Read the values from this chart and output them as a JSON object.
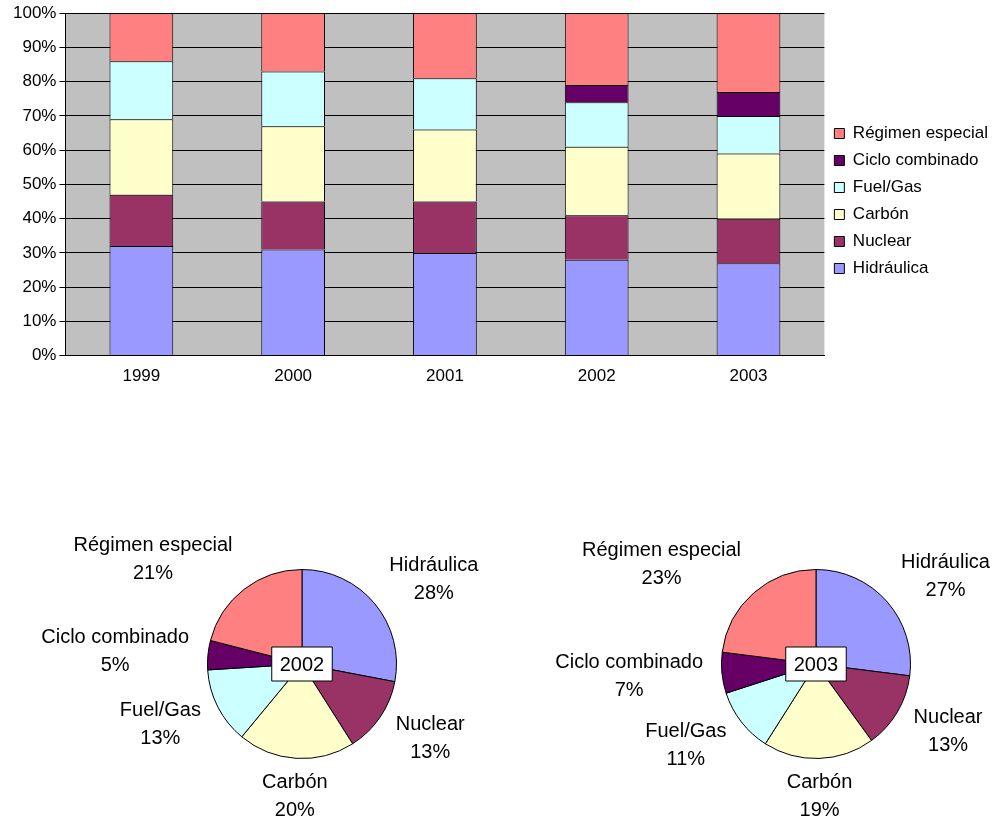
{
  "chart_data": [
    {
      "type": "bar",
      "stacked": true,
      "categories": [
        "1999",
        "2000",
        "2001",
        "2002",
        "2003"
      ],
      "series": [
        {
          "name": "Hidráulica",
          "color": "#9999ff",
          "values": [
            32,
            31,
            30,
            28,
            27
          ]
        },
        {
          "name": "Nuclear",
          "color": "#993366",
          "values": [
            15,
            14,
            15,
            13,
            13
          ]
        },
        {
          "name": "Carbón",
          "color": "#ffffcc",
          "values": [
            22,
            22,
            21,
            20,
            19
          ]
        },
        {
          "name": "Fuel/Gas",
          "color": "#ccffff",
          "values": [
            17,
            16,
            15,
            13,
            11
          ]
        },
        {
          "name": "Ciclo combinado",
          "color": "#660066",
          "values": [
            0,
            0,
            0,
            5,
            7
          ]
        },
        {
          "name": "Régimen especial",
          "color": "#ff8080",
          "values": [
            14,
            17,
            19,
            21,
            23
          ]
        }
      ],
      "ylim": [
        0,
        100
      ],
      "yticks": [
        {
          "value": 0,
          "label": "0%"
        },
        {
          "value": 10,
          "label": "10%"
        },
        {
          "value": 20,
          "label": "20%"
        },
        {
          "value": 30,
          "label": "30%"
        },
        {
          "value": 40,
          "label": "40%"
        },
        {
          "value": 50,
          "label": "50%"
        },
        {
          "value": 60,
          "label": "60%"
        },
        {
          "value": 70,
          "label": "70%"
        },
        {
          "value": 80,
          "label": "80%"
        },
        {
          "value": 90,
          "label": "90%"
        },
        {
          "value": 100,
          "label": "100%"
        }
      ],
      "grid": "y",
      "legend": "right"
    },
    {
      "type": "pie",
      "title": "2002",
      "categories": [
        "Hidráulica",
        "Nuclear",
        "Carbón",
        "Fuel/Gas",
        "Ciclo combinado",
        "Régimen especial"
      ],
      "values": [
        28,
        13,
        20,
        13,
        5,
        21
      ],
      "value_labels": [
        "28%",
        "13%",
        "20%",
        "13%",
        "5%",
        "21%"
      ],
      "colors": [
        "#9999ff",
        "#993366",
        "#ffffcc",
        "#ccffff",
        "#660066",
        "#ff8080"
      ]
    },
    {
      "type": "pie",
      "title": "2003",
      "categories": [
        "Hidráulica",
        "Nuclear",
        "Carbón",
        "Fuel/Gas",
        "Ciclo combinado",
        "Régimen especial"
      ],
      "values": [
        27,
        13,
        19,
        11,
        7,
        23
      ],
      "value_labels": [
        "27%",
        "13%",
        "19%",
        "11%",
        "7%",
        "23%"
      ],
      "colors": [
        "#9999ff",
        "#993366",
        "#ffffcc",
        "#ccffff",
        "#660066",
        "#ff8080"
      ]
    }
  ]
}
